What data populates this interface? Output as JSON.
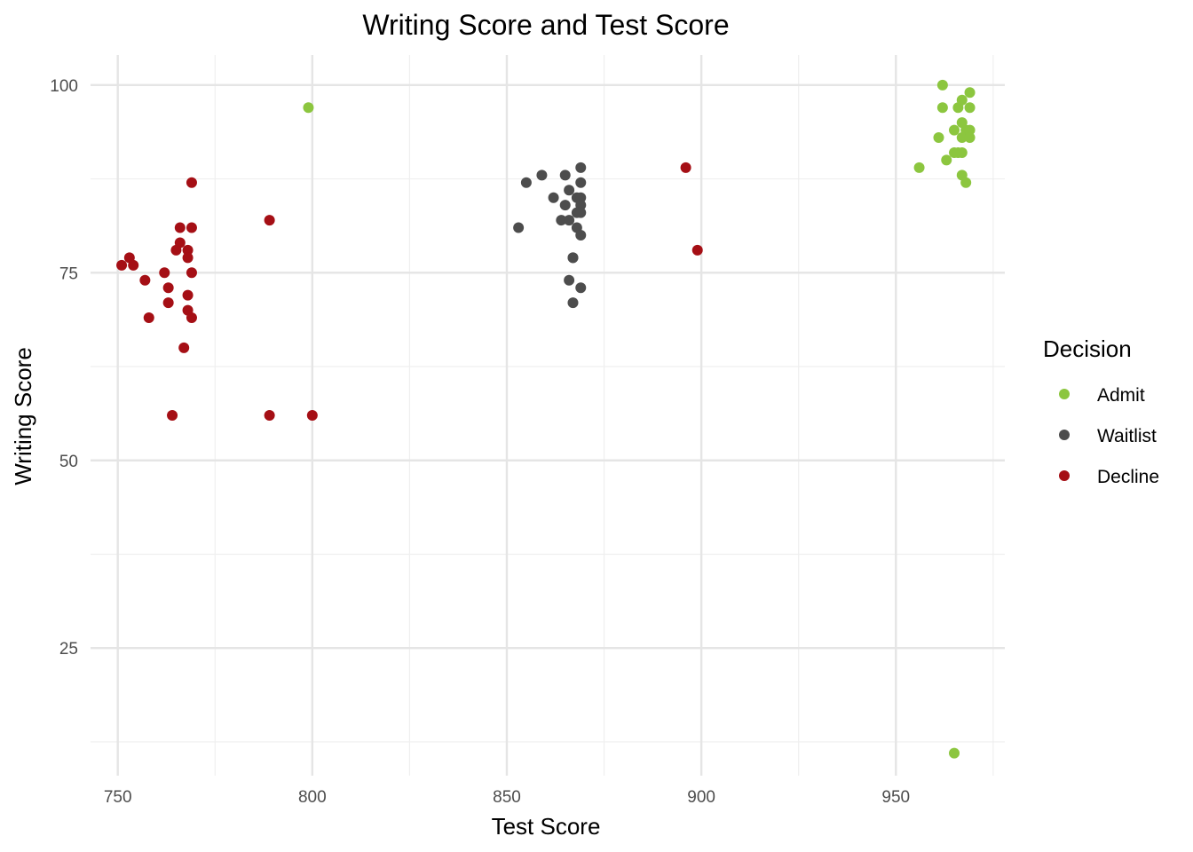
{
  "chart_data": {
    "type": "scatter",
    "title": "Writing Score and Test Score",
    "xlabel": "Test Score",
    "ylabel": "Writing Score",
    "xlim": [
      743,
      978
    ],
    "ylim": [
      8,
      104
    ],
    "x_ticks": [
      750,
      800,
      850,
      900,
      950
    ],
    "x_tick_labels": [
      "750",
      "800",
      "850",
      "900",
      "950"
    ],
    "x_minor_ticks": [
      775,
      825,
      875,
      925,
      975
    ],
    "y_ticks": [
      25,
      50,
      75,
      100
    ],
    "y_tick_labels": [
      "25",
      "50",
      "75",
      "100"
    ],
    "y_minor_ticks": [
      12.5,
      37.5,
      62.5,
      87.5
    ],
    "grid": true,
    "legend": {
      "title": "Decision",
      "position": "right"
    },
    "series": [
      {
        "name": "Admit",
        "color": "#8cc63f",
        "points": [
          [
            962,
            100
          ],
          [
            969,
            99
          ],
          [
            967,
            98
          ],
          [
            966,
            97
          ],
          [
            962,
            97
          ],
          [
            969,
            97
          ],
          [
            799,
            97
          ],
          [
            967,
            95
          ],
          [
            965,
            94
          ],
          [
            968,
            94
          ],
          [
            969,
            94
          ],
          [
            961,
            93
          ],
          [
            967,
            93
          ],
          [
            969,
            93
          ],
          [
            965,
            91
          ],
          [
            966,
            91
          ],
          [
            967,
            91
          ],
          [
            963,
            90
          ],
          [
            956,
            89
          ],
          [
            967,
            88
          ],
          [
            968,
            87
          ],
          [
            965,
            11
          ]
        ]
      },
      {
        "name": "Waitlist",
        "color": "#4d4d4d",
        "points": [
          [
            869,
            89
          ],
          [
            859,
            88
          ],
          [
            865,
            88
          ],
          [
            855,
            87
          ],
          [
            869,
            87
          ],
          [
            866,
            86
          ],
          [
            862,
            85
          ],
          [
            868,
            85
          ],
          [
            869,
            85
          ],
          [
            865,
            84
          ],
          [
            869,
            84
          ],
          [
            868,
            83
          ],
          [
            869,
            83
          ],
          [
            864,
            82
          ],
          [
            866,
            82
          ],
          [
            853,
            81
          ],
          [
            868,
            81
          ],
          [
            869,
            80
          ],
          [
            867,
            77
          ],
          [
            867,
            77
          ],
          [
            866,
            74
          ],
          [
            869,
            73
          ],
          [
            867,
            71
          ]
        ]
      },
      {
        "name": "Decline",
        "color": "#a50f15",
        "points": [
          [
            769,
            87
          ],
          [
            896,
            89
          ],
          [
            789,
            82
          ],
          [
            766,
            81
          ],
          [
            769,
            81
          ],
          [
            766,
            79
          ],
          [
            765,
            78
          ],
          [
            768,
            78
          ],
          [
            899,
            78
          ],
          [
            753,
            77
          ],
          [
            768,
            77
          ],
          [
            751,
            76
          ],
          [
            754,
            76
          ],
          [
            762,
            75
          ],
          [
            769,
            75
          ],
          [
            757,
            74
          ],
          [
            763,
            73
          ],
          [
            768,
            72
          ],
          [
            763,
            71
          ],
          [
            768,
            70
          ],
          [
            758,
            69
          ],
          [
            769,
            69
          ],
          [
            767,
            65
          ],
          [
            764,
            56
          ],
          [
            789,
            56
          ],
          [
            800,
            56
          ]
        ]
      }
    ]
  }
}
